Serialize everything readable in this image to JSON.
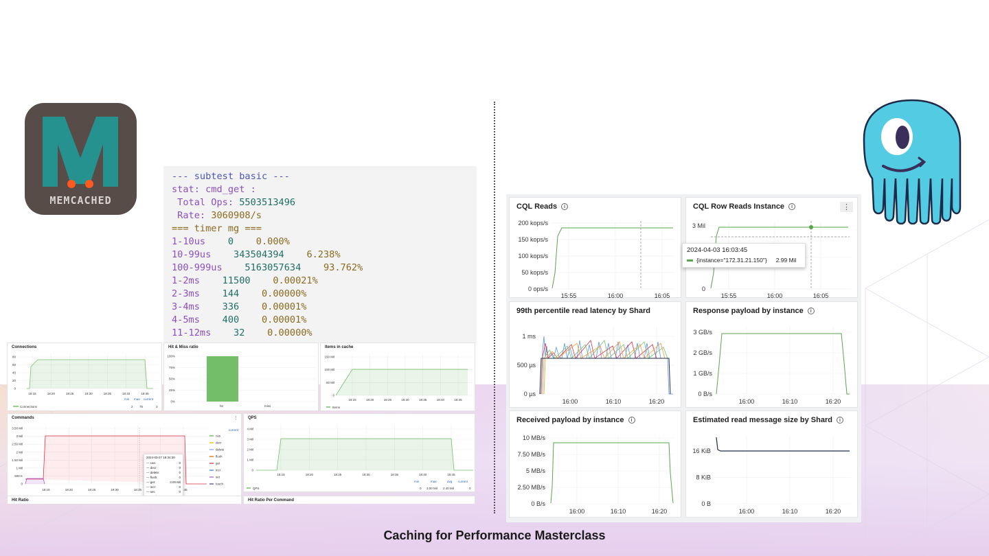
{
  "footer": {
    "title": "Caching for Performance Masterclass"
  },
  "logos": {
    "memcached": "MEMCACHED"
  },
  "terminal": {
    "lines": [
      {
        "parts": [
          {
            "t": "--- subtest basic ---",
            "c": "c-blue"
          }
        ]
      },
      {
        "parts": [
          {
            "t": "stat: cmd_get :",
            "c": "c-purple"
          }
        ]
      },
      {
        "parts": [
          {
            "t": " Total Ops: ",
            "c": "c-purple"
          },
          {
            "t": "5503513496",
            "c": "c-teal"
          }
        ]
      },
      {
        "parts": [
          {
            "t": " Rate: ",
            "c": "c-purple"
          },
          {
            "t": "3060908/s",
            "c": "c-olive"
          }
        ]
      },
      {
        "parts": [
          {
            "t": "=== timer mg ===",
            "c": "c-olive"
          }
        ]
      },
      {
        "parts": [
          {
            "t": "1-10us",
            "c": "c-purple"
          },
          {
            "t": "    0",
            "c": "c-teal"
          },
          {
            "t": "    0.000%",
            "c": "c-olive"
          }
        ]
      },
      {
        "parts": [
          {
            "t": "10-99us",
            "c": "c-purple"
          },
          {
            "t": "    343504394",
            "c": "c-teal"
          },
          {
            "t": "    6.238%",
            "c": "c-olive"
          }
        ]
      },
      {
        "parts": [
          {
            "t": "100-999us",
            "c": "c-purple"
          },
          {
            "t": "    5163057634",
            "c": "c-teal"
          },
          {
            "t": "    93.762%",
            "c": "c-olive"
          }
        ]
      },
      {
        "parts": [
          {
            "t": "1-2ms",
            "c": "c-purple"
          },
          {
            "t": "    11500",
            "c": "c-teal"
          },
          {
            "t": "    0.00021%",
            "c": "c-olive"
          }
        ]
      },
      {
        "parts": [
          {
            "t": "2-3ms",
            "c": "c-purple"
          },
          {
            "t": "    144",
            "c": "c-teal"
          },
          {
            "t": "    0.00000%",
            "c": "c-olive"
          }
        ]
      },
      {
        "parts": [
          {
            "t": "3-4ms",
            "c": "c-purple"
          },
          {
            "t": "    336",
            "c": "c-teal"
          },
          {
            "t": "    0.00001%",
            "c": "c-olive"
          }
        ]
      },
      {
        "parts": [
          {
            "t": "4-5ms",
            "c": "c-purple"
          },
          {
            "t": "    400",
            "c": "c-teal"
          },
          {
            "t": "    0.00001%",
            "c": "c-olive"
          }
        ]
      },
      {
        "parts": [
          {
            "t": "11-12ms",
            "c": "c-purple"
          },
          {
            "t": "    32",
            "c": "c-teal"
          },
          {
            "t": "    0.00000%",
            "c": "c-olive"
          }
        ]
      }
    ]
  },
  "small_panels": {
    "connections": {
      "title": "Connections",
      "yticks": [
        "80",
        "60",
        "40",
        "20",
        "0"
      ],
      "xticks": [
        "18:15",
        "18:20",
        "18:25",
        "18:30",
        "18:35",
        "18:40",
        "18:45"
      ],
      "legend": "Connections",
      "stats_headers": [
        "min",
        "max",
        "current"
      ],
      "stats_values": [
        "2",
        "75",
        "3"
      ]
    },
    "hit_miss": {
      "title": "Hit & Miss ratio",
      "yticks": [
        "100%",
        "75%",
        "50%",
        "25%",
        "0%"
      ],
      "categories": [
        "hit",
        "miss"
      ],
      "values": [
        100,
        0
      ]
    },
    "items": {
      "title": "Items in cache",
      "yticks": [
        "150 Mil",
        "100 Mil",
        "50 Mil",
        "0"
      ],
      "xticks": [
        "18:15",
        "18:20",
        "18:25",
        "18:30",
        "18:35",
        "18:40",
        "18:45"
      ],
      "legend": "Items"
    },
    "commands": {
      "title": "Commands",
      "yticks": [
        "3.50 Mil",
        "3 Mil",
        "2.50 Mil",
        "2 Mil",
        "1.50 Mil",
        "1 Mil",
        "500 K",
        "0"
      ],
      "xticks": [
        "18:15",
        "18:20",
        "18:25",
        "18:30",
        "18:35",
        "18:40",
        "18:45"
      ],
      "legend_header": "current",
      "legend": [
        "cas",
        "decr",
        "delete",
        "flush",
        "get",
        "incr",
        "set",
        "touch"
      ],
      "legend_colors": [
        "#73bf69",
        "#f2cc0c",
        "#8ab8ff",
        "#ff780a",
        "#f2495c",
        "#5794f2",
        "#b877d9",
        "#705da0"
      ],
      "tooltip_time": "2024-03-27 18:34:30",
      "tooltip_rows": [
        {
          "k": "cas:",
          "v": "0"
        },
        {
          "k": "decr:",
          "v": "0"
        },
        {
          "k": "delete:",
          "v": "0"
        },
        {
          "k": "flush:",
          "v": "0"
        },
        {
          "k": "get:",
          "v": "3.00 Mil"
        },
        {
          "k": "incr:",
          "v": "0"
        },
        {
          "k": "set:",
          "v": "0"
        },
        {
          "k": "touch:",
          "v": "0"
        }
      ]
    },
    "qps": {
      "title": "QPS",
      "yticks": [
        "4 Mil",
        "3 Mil",
        "2 Mil",
        "1 Mil",
        "0"
      ],
      "xticks": [
        "18:15",
        "18:20",
        "18:25",
        "18:30",
        "18:35",
        "18:40",
        "18:45"
      ],
      "legend": "QPS",
      "stats_headers": [
        "min",
        "max",
        "avg",
        "current"
      ],
      "stats_values": [
        "0",
        "3.00 Mil",
        "2.40 Mil",
        "0"
      ]
    },
    "hit_ratio": {
      "title": "Hit Ratio"
    },
    "hit_ratio_cmd": {
      "title": "Hit Ratio Per Command"
    }
  },
  "big_panels": {
    "cql_reads": {
      "title": "CQL Reads",
      "yticks": [
        "200 kops/s",
        "150 kops/s",
        "100 kops/s",
        "50 kops/s",
        "0 ops/s"
      ],
      "xticks": [
        "15:55",
        "16:00",
        "16:05"
      ]
    },
    "cql_row": {
      "title": "CQL Row Reads Instance",
      "yticks": [
        "3 Mil",
        "1 Mil",
        "0"
      ],
      "xticks": [
        "15:55",
        "16:00",
        "16:05"
      ],
      "tooltip_time": "2024-04-03 16:03:45",
      "tooltip_series": "{instance=\"172.31.21.150\"}",
      "tooltip_value": "2.99 Mil"
    },
    "latency": {
      "title": "99th percentile read latency by Shard",
      "yticks": [
        "1 ms",
        "500 µs",
        "0 µs"
      ],
      "xticks": [
        "16:00",
        "16:10",
        "16:20"
      ]
    },
    "response": {
      "title": "Response payload by instance",
      "yticks": [
        "3 GB/s",
        "2 GB/s",
        "1 GB/s",
        "0 B/s"
      ],
      "xticks": [
        "16:00",
        "16:10",
        "16:20"
      ]
    },
    "received": {
      "title": "Received payload by instance",
      "yticks": [
        "10 MB/s",
        "7.50 MB/s",
        "5 MB/s",
        "2.50 MB/s",
        "0 B/s"
      ],
      "xticks": [
        "16:00",
        "16:10",
        "16:20"
      ]
    },
    "msgsize": {
      "title": "Estimated read message size by Shard",
      "yticks": [
        "16 KiB",
        "8 KiB",
        "0 B"
      ],
      "xticks": [
        "16:00",
        "16:10",
        "16:20"
      ]
    }
  },
  "colors": {
    "green": "#73bf69",
    "red": "#e02f44",
    "purple": "#a352cc",
    "dark": "#1f2a44"
  }
}
